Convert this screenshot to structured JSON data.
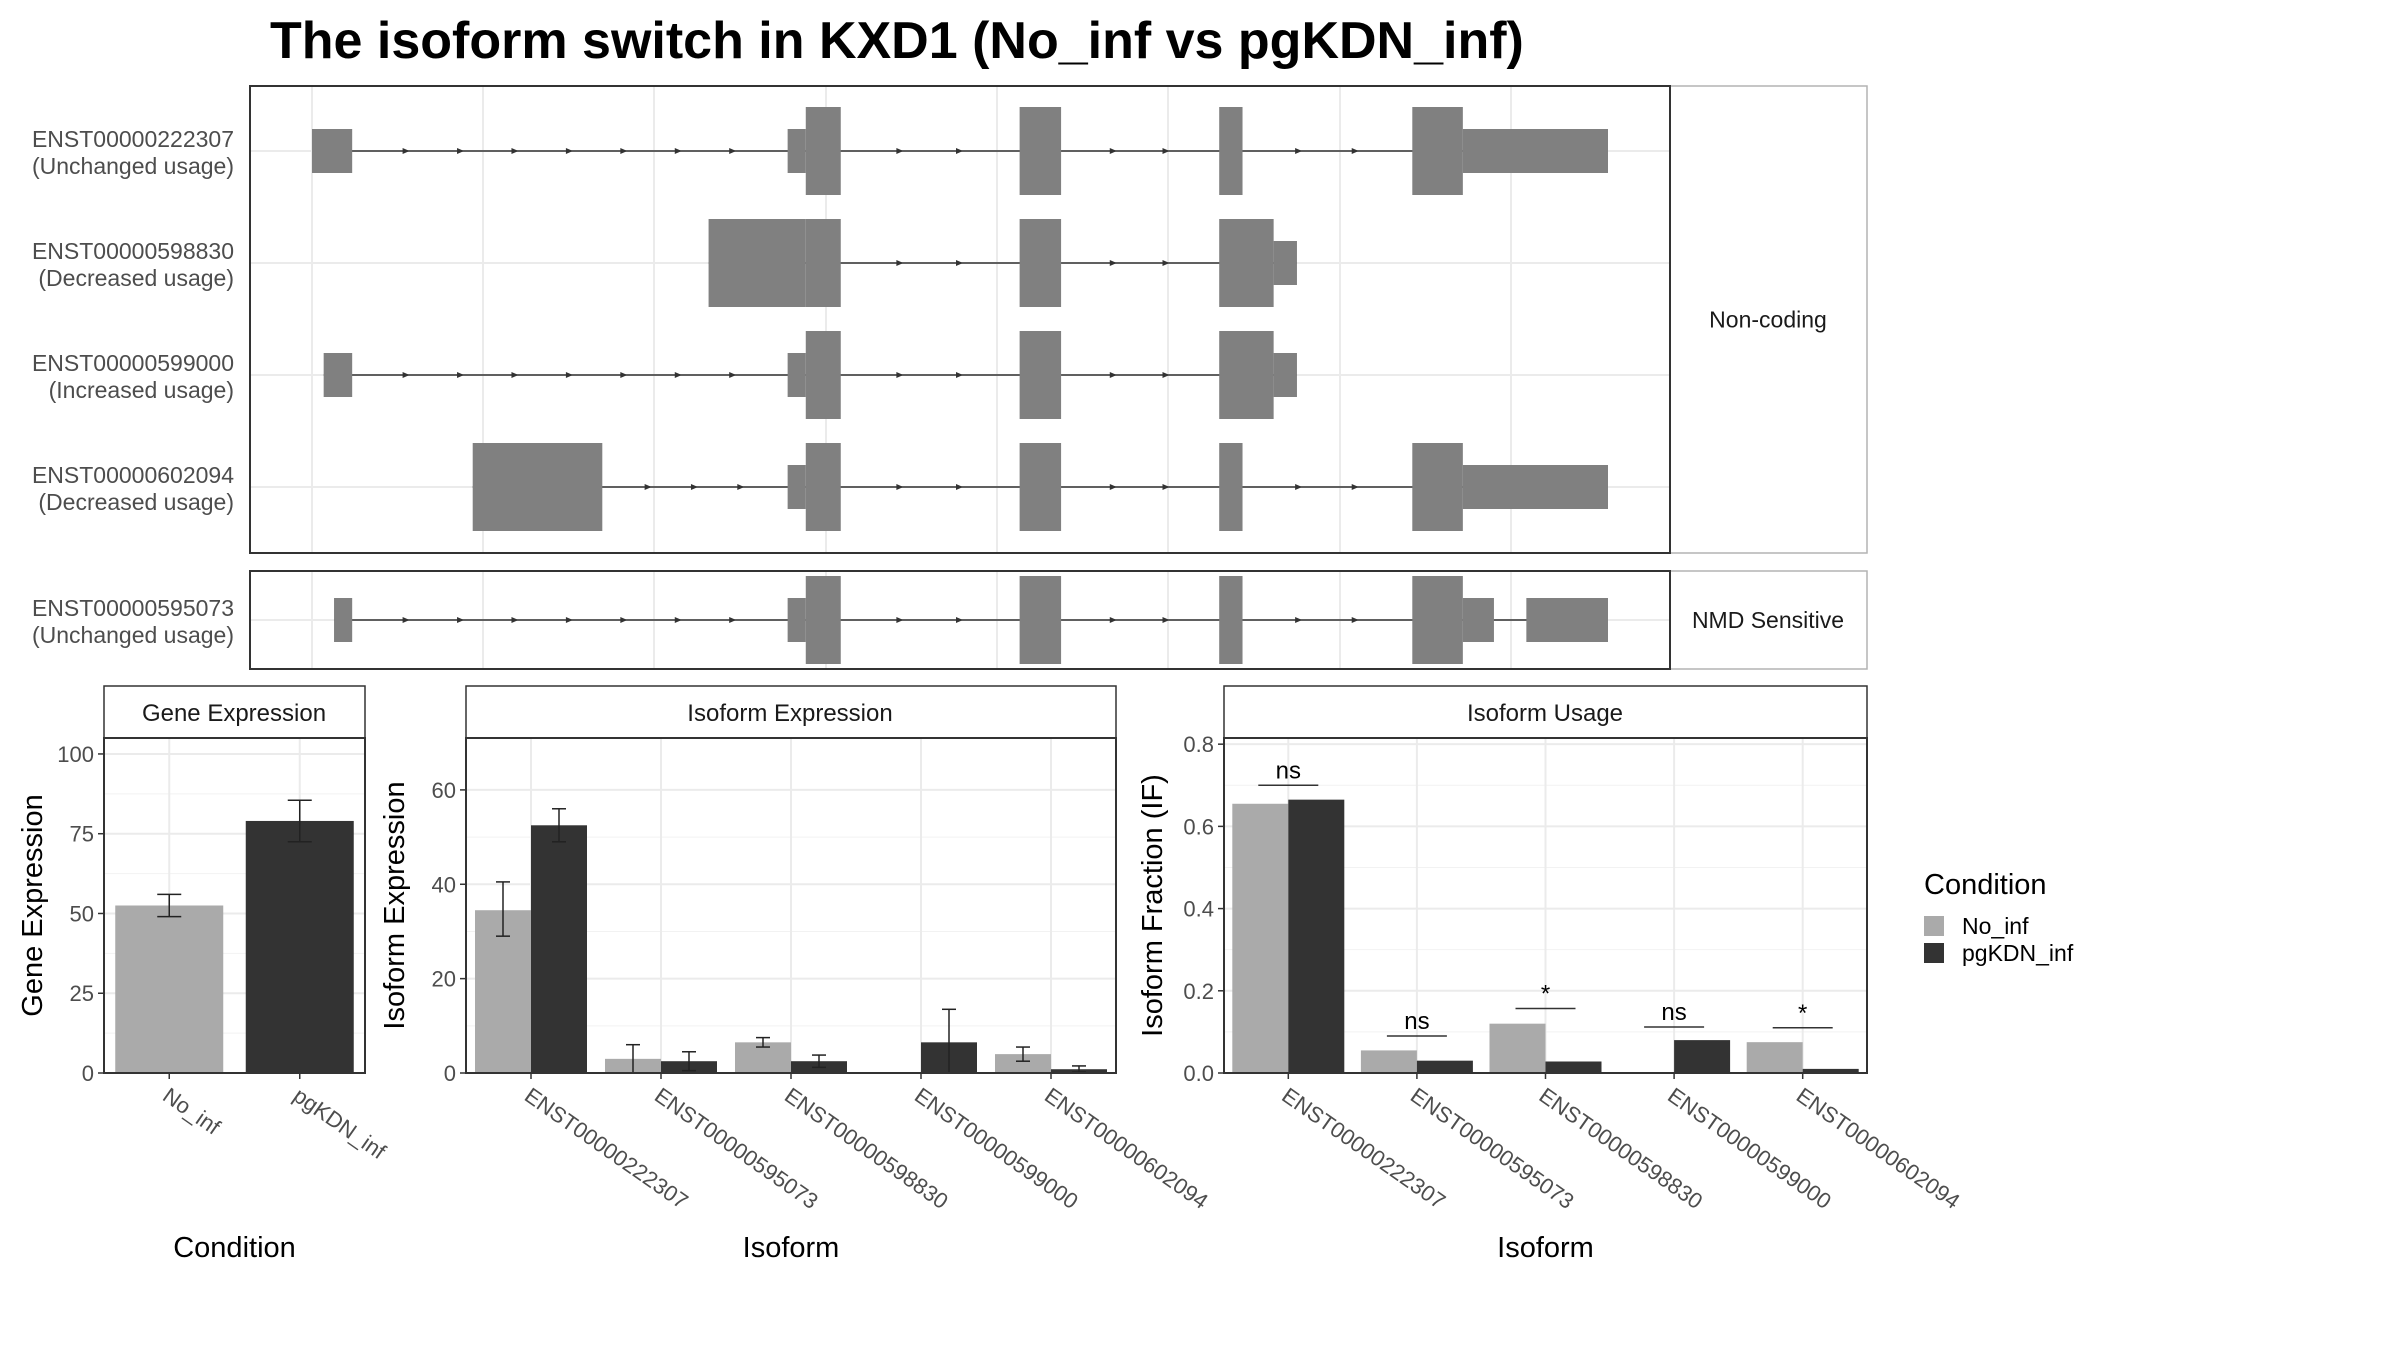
{
  "title": "The isoform switch in KXD1 (No_inf vs pgKDN_inf)",
  "colors": {
    "no_inf": "#AAAAAA",
    "pgkdn_inf": "#333333",
    "exon": "#808080",
    "strip": "#ffffff",
    "grid": "#ebebeb",
    "panel_border": "#333333"
  },
  "transcript_panel": {
    "facets": [
      "Non-coding",
      "NMD Sensitive"
    ],
    "transcripts": [
      {
        "id": "ENST00000222307",
        "usage": "(Unchanged usage)",
        "facet": "Non-coding",
        "exons": [
          [
            0.0,
            0.031,
            "thin"
          ],
          [
            0.367,
            0.381,
            "thin"
          ],
          [
            0.381,
            0.408,
            "thick"
          ],
          [
            0.546,
            0.578,
            "thick"
          ],
          [
            0.7,
            0.718,
            "thick"
          ],
          [
            0.849,
            0.888,
            "thick"
          ],
          [
            0.888,
            1.0,
            "thin"
          ]
        ]
      },
      {
        "id": "ENST00000598830",
        "usage": "(Decreased usage)",
        "facet": "Non-coding",
        "exons": [
          [
            0.306,
            0.381,
            "thick"
          ],
          [
            0.381,
            0.408,
            "thick"
          ],
          [
            0.546,
            0.578,
            "thick"
          ],
          [
            0.7,
            0.742,
            "thick"
          ],
          [
            0.742,
            0.76,
            "thin"
          ]
        ]
      },
      {
        "id": "ENST00000599000",
        "usage": "(Increased usage)",
        "facet": "Non-coding",
        "exons": [
          [
            0.009,
            0.031,
            "thin"
          ],
          [
            0.367,
            0.381,
            "thin"
          ],
          [
            0.381,
            0.408,
            "thick"
          ],
          [
            0.546,
            0.578,
            "thick"
          ],
          [
            0.7,
            0.742,
            "thick"
          ],
          [
            0.742,
            0.76,
            "thin"
          ]
        ]
      },
      {
        "id": "ENST00000602094",
        "usage": "(Decreased usage)",
        "facet": "Non-coding",
        "exons": [
          [
            0.124,
            0.224,
            "thick"
          ],
          [
            0.367,
            0.381,
            "thin"
          ],
          [
            0.381,
            0.408,
            "thick"
          ],
          [
            0.546,
            0.578,
            "thick"
          ],
          [
            0.7,
            0.718,
            "thick"
          ],
          [
            0.849,
            0.888,
            "thick"
          ],
          [
            0.888,
            1.0,
            "thin"
          ]
        ]
      },
      {
        "id": "ENST00000595073",
        "usage": "(Unchanged usage)",
        "facet": "NMD Sensitive",
        "exons": [
          [
            0.017,
            0.031,
            "thin"
          ],
          [
            0.367,
            0.381,
            "thin"
          ],
          [
            0.381,
            0.408,
            "thick"
          ],
          [
            0.546,
            0.578,
            "thick"
          ],
          [
            0.7,
            0.718,
            "thick"
          ],
          [
            0.849,
            0.888,
            "thick"
          ],
          [
            0.888,
            0.912,
            "thin"
          ],
          [
            0.937,
            1.0,
            "thin"
          ]
        ]
      }
    ]
  },
  "chart_data": [
    {
      "type": "bar",
      "title": "Gene Expression",
      "xlabel": "Condition",
      "ylabel": "Gene Expression",
      "categories": [
        "No_inf",
        "pgKDN_inf"
      ],
      "values": [
        52.5,
        79
      ],
      "error_low": [
        49,
        72.5
      ],
      "error_high": [
        56,
        85.5
      ],
      "ylim": [
        0,
        105
      ],
      "yticks": [
        "0",
        "25",
        "50",
        "75",
        "100"
      ],
      "grid": true
    },
    {
      "type": "bar",
      "title": "Isoform Expression",
      "xlabel": "Isoform",
      "ylabel": "Isoform Expression",
      "categories": [
        "ENST00000222307",
        "ENST00000595073",
        "ENST00000598830",
        "ENST00000599000",
        "ENST00000602094"
      ],
      "series": [
        {
          "name": "No_inf",
          "values": [
            34.5,
            3,
            6.5,
            0,
            4
          ],
          "error_low": [
            29,
            0,
            5.5,
            0,
            2.5
          ],
          "error_high": [
            40.5,
            6,
            7.5,
            0,
            5.5
          ]
        },
        {
          "name": "pgKDN_inf",
          "values": [
            52.5,
            2.5,
            2.5,
            6.5,
            0.8
          ],
          "error_low": [
            49,
            0.5,
            1.2,
            0,
            0.2
          ],
          "error_high": [
            56,
            4.5,
            3.8,
            13.5,
            1.5
          ]
        }
      ],
      "ylim": [
        0,
        71
      ],
      "yticks": [
        "0",
        "20",
        "40",
        "60"
      ],
      "grid": true
    },
    {
      "type": "bar",
      "title": "Isoform Usage",
      "xlabel": "Isoform",
      "ylabel": "Isoform Fraction (IF)",
      "categories": [
        "ENST00000222307",
        "ENST00000595073",
        "ENST00000598830",
        "ENST00000599000",
        "ENST00000602094"
      ],
      "series": [
        {
          "name": "No_inf",
          "values": [
            0.655,
            0.055,
            0.12,
            0,
            0.075
          ]
        },
        {
          "name": "pgKDN_inf",
          "values": [
            0.665,
            0.03,
            0.028,
            0.08,
            0.01
          ]
        }
      ],
      "significance": [
        {
          "label": "ns",
          "y": 0.7
        },
        {
          "label": "ns",
          "y": 0.09
        },
        {
          "label": "*",
          "y": 0.157
        },
        {
          "label": "ns",
          "y": 0.112
        },
        {
          "label": "*",
          "y": 0.11
        }
      ],
      "ylim": [
        0,
        0.815
      ],
      "yticks": [
        "0.0",
        "0.2",
        "0.4",
        "0.6",
        "0.8"
      ],
      "grid": true
    }
  ],
  "legend": {
    "title": "Condition",
    "placement": "right",
    "items": [
      {
        "label": "No_inf",
        "color": "#AAAAAA"
      },
      {
        "label": "pgKDN_inf",
        "color": "#333333"
      }
    ]
  }
}
